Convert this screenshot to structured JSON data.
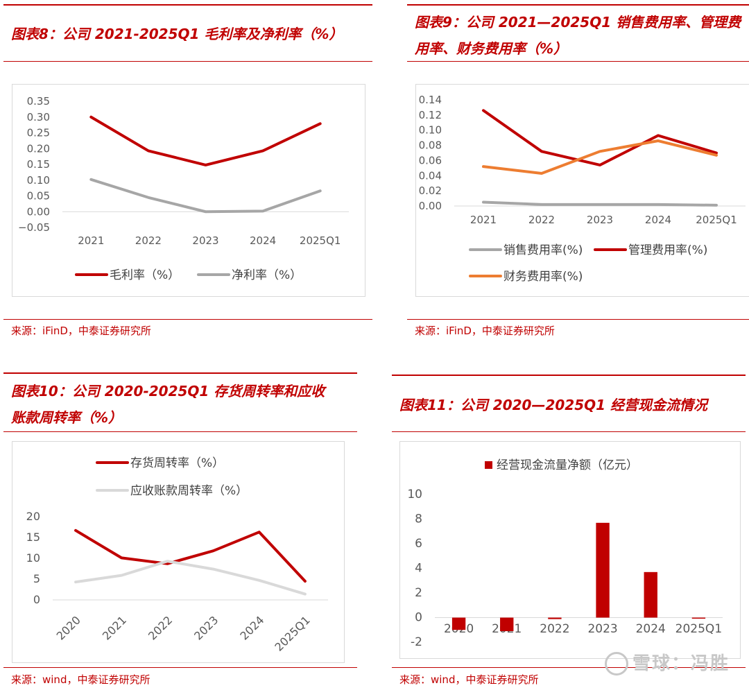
{
  "figures": [
    {
      "title_lines": [
        "图表8：公司 2021-2025Q1 毛利率及净利率（%）"
      ],
      "source": "来源：iFinD，中泰证券研究所"
    },
    {
      "title_lines": [
        "图表9：公司 2021—2025Q1 销售费用率、管理费",
        "用率、财务费用率（%）"
      ],
      "source": "来源：iFinD，中泰证券研究所"
    },
    {
      "title_lines": [
        "图表10：公司 2020-2025Q1 存货周转率和应收",
        "账款周转率（%）"
      ],
      "source": "来源：wind，中泰证券研究所"
    },
    {
      "title_lines": [
        "图表11：公司 2020—2025Q1 经营现金流情况"
      ],
      "source": "来源：wind，中泰证券研究所"
    }
  ],
  "watermark": "雪球：冯胜",
  "chart_data": [
    {
      "type": "line",
      "categories": [
        "2021",
        "2022",
        "2023",
        "2024",
        "2025Q1"
      ],
      "y_ticks": [
        "0.35",
        "0.30",
        "0.25",
        "0.20",
        "0.15",
        "0.10",
        "0.05",
        "0.00",
        "−0.05"
      ],
      "ylim": [
        -0.05,
        0.35
      ],
      "legend": "bottom",
      "series": [
        {
          "name": "毛利率（%）",
          "color": "#c00000",
          "values": [
            0.3,
            0.193,
            0.148,
            0.193,
            0.279
          ]
        },
        {
          "name": "净利率（%）",
          "color": "#a6a6a6",
          "values": [
            0.102,
            0.045,
            0.0,
            0.002,
            0.066
          ]
        }
      ]
    },
    {
      "type": "line",
      "categories": [
        "2021",
        "2022",
        "2023",
        "2024",
        "2025Q1"
      ],
      "y_ticks": [
        "0.14",
        "0.12",
        "0.10",
        "0.08",
        "0.06",
        "0.04",
        "0.02",
        "0.00"
      ],
      "ylim": [
        0,
        0.14
      ],
      "legend": "bottom",
      "series": [
        {
          "name": "销售费用率(%)",
          "color": "#a6a6a6",
          "values": [
            0.005,
            0.002,
            0.002,
            0.002,
            0.001
          ]
        },
        {
          "name": "管理费用率(%)",
          "color": "#c00000",
          "values": [
            0.126,
            0.072,
            0.054,
            0.093,
            0.07
          ]
        },
        {
          "name": "财务费用率(%)",
          "color": "#ed7d31",
          "values": [
            0.052,
            0.043,
            0.072,
            0.086,
            0.067
          ]
        }
      ]
    },
    {
      "type": "line",
      "categories": [
        "2020",
        "2021",
        "2022",
        "2023",
        "2024",
        "2025Q1"
      ],
      "y_ticks": [
        "20",
        "15",
        "10",
        "5",
        "0"
      ],
      "ylim": [
        0,
        20
      ],
      "legend": "top",
      "series": [
        {
          "name": "存货周转率（%）",
          "color": "#c00000",
          "values": [
            16.7,
            10.1,
            8.7,
            11.8,
            16.3,
            4.5
          ]
        },
        {
          "name": "应收账款周转率（%）",
          "color": "#d9d9d9",
          "values": [
            4.3,
            5.9,
            9.3,
            7.4,
            4.7,
            1.4
          ]
        }
      ]
    },
    {
      "type": "bar",
      "categories": [
        "2020",
        "2021",
        "2022",
        "2023",
        "2024",
        "2025Q1"
      ],
      "y_ticks": [
        "10",
        "8",
        "6",
        "4",
        "2",
        "0",
        "-2"
      ],
      "ylim": [
        -2,
        10
      ],
      "legend": "top",
      "series": [
        {
          "name": "经营现金流量净额（亿元）",
          "color": "#c00000",
          "values": [
            -1.0,
            -1.1,
            -0.12,
            7.7,
            3.7,
            -0.05
          ]
        }
      ]
    }
  ]
}
